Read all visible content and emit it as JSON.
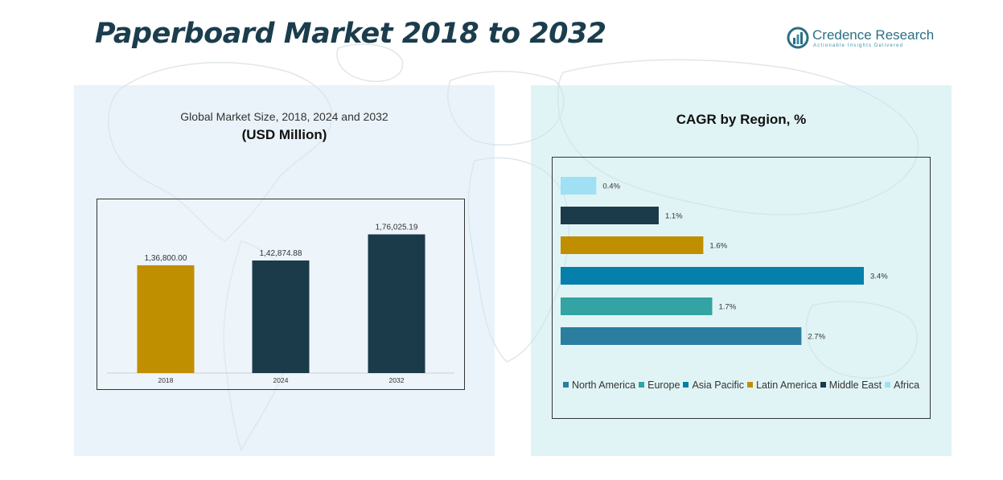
{
  "title": "Paperboard Market 2018 to 2032",
  "logo": {
    "name": "Credence Research",
    "tagline": "Actionable Insights Delivered"
  },
  "chart_data": [
    {
      "type": "bar",
      "title": "Global Market Size, 2018, 2024 and 2032",
      "subtitle": "(USD Million)",
      "categories": [
        "2018",
        "2024",
        "2032"
      ],
      "values": [
        136800.0,
        142874.88,
        176025.19
      ],
      "value_labels": [
        "1,36,800.00",
        "1,42,874.88",
        "1,76,025.19"
      ],
      "colors": [
        "#c08f00",
        "#1b3b4b",
        "#1b3b4b"
      ],
      "ylim": [
        0,
        200000
      ],
      "grid": false,
      "xlabel": "",
      "ylabel": ""
    },
    {
      "type": "bar",
      "orientation": "horizontal",
      "title": "CAGR by Region, %",
      "categories": [
        "Africa",
        "Middle East",
        "Latin America",
        "Asia Pacific",
        "Europe",
        "North America"
      ],
      "values": [
        0.4,
        1.1,
        1.6,
        3.4,
        1.7,
        2.7
      ],
      "value_labels": [
        "0.4%",
        "1.1%",
        "1.6%",
        "3.4%",
        "1.7%",
        "2.7%"
      ],
      "colors": [
        "#9fe0f5",
        "#1b3b4b",
        "#c08f00",
        "#0580ad",
        "#34a3a3",
        "#2b7ea0"
      ],
      "xlim": [
        0,
        3.4
      ],
      "grid": false,
      "legend": {
        "position": "bottom",
        "entries": [
          "North America",
          "Europe",
          "Asia Pacific",
          "Latin America",
          "Middle East",
          "Africa"
        ],
        "colors": [
          "#2b7ea0",
          "#34a3a3",
          "#0580ad",
          "#c08f00",
          "#1b3b4b",
          "#9fe0f5"
        ]
      }
    }
  ]
}
